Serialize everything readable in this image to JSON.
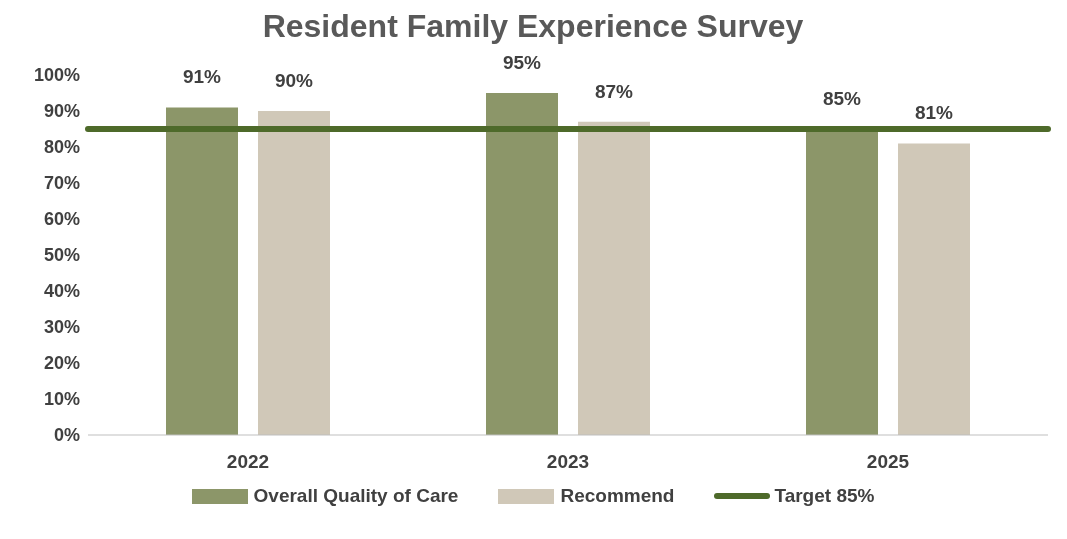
{
  "chart_data": {
    "type": "bar",
    "title": "Resident Family Experience Survey",
    "categories": [
      "2022",
      "2023",
      "2025"
    ],
    "series": [
      {
        "name": "Overall Quality of Care",
        "color": "#8c9669",
        "values": [
          91,
          95,
          85
        ],
        "value_labels": [
          "91%",
          "95%",
          "85%"
        ]
      },
      {
        "name": "Recommend",
        "color": "#d0c8b8",
        "values": [
          90,
          87,
          81
        ],
        "value_labels": [
          "90%",
          "87%",
          "81%"
        ]
      }
    ],
    "ylim": [
      0,
      100
    ],
    "yticks": [
      {
        "value": 0,
        "label": "0%"
      },
      {
        "value": 10,
        "label": "10%"
      },
      {
        "value": 20,
        "label": "20%"
      },
      {
        "value": 30,
        "label": "30%"
      },
      {
        "value": 40,
        "label": "40%"
      },
      {
        "value": 50,
        "label": "50%"
      },
      {
        "value": 60,
        "label": "60%"
      },
      {
        "value": 70,
        "label": "70%"
      },
      {
        "value": 80,
        "label": "80%"
      },
      {
        "value": 90,
        "label": "90%"
      },
      {
        "value": 100,
        "label": "100%"
      }
    ],
    "ref_lines": [
      {
        "axis": "y",
        "value": 85,
        "label": "Target 85%",
        "color": "#4e6a2a"
      }
    ],
    "grid": false,
    "legend": "bottom"
  }
}
